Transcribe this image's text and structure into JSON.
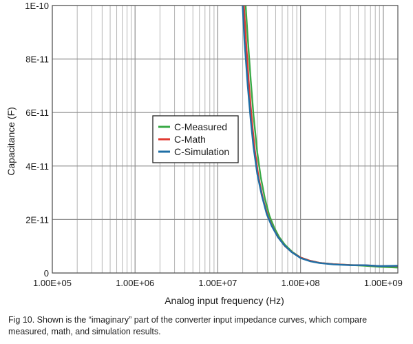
{
  "chart_data": {
    "type": "line",
    "title": "",
    "xlabel": "Analog input frequency (Hz)",
    "ylabel": "Capacitance (F)",
    "xscale": "log",
    "xlim": [
      100000,
      1500000000
    ],
    "ylim": [
      0,
      1e-10
    ],
    "grid": true,
    "legend_position": "center",
    "x_ticks": [
      {
        "value": 100000,
        "label": "1.00E+05"
      },
      {
        "value": 1000000,
        "label": "1.00E+06"
      },
      {
        "value": 10000000,
        "label": "1.00E+07"
      },
      {
        "value": 100000000,
        "label": "1.00E+08"
      },
      {
        "value": 1000000000,
        "label": "1.00E+09"
      }
    ],
    "y_ticks": [
      {
        "value": 0,
        "label": "0"
      },
      {
        "value": 2e-11,
        "label": "2E-11"
      },
      {
        "value": 4e-11,
        "label": "4E-11"
      },
      {
        "value": 6e-11,
        "label": "6E-11"
      },
      {
        "value": 8e-11,
        "label": "8E-11"
      },
      {
        "value": 1e-10,
        "label": "1E-10"
      }
    ],
    "series": [
      {
        "name": "C-Measured",
        "color": "#3aaa47",
        "points": [
          [
            21500000,
            1.02e-10
          ],
          [
            23000000,
            8.8e-11
          ],
          [
            25000000,
            7.2e-11
          ],
          [
            27000000,
            5.9e-11
          ],
          [
            30000000,
            4.5e-11
          ],
          [
            33000000,
            3.6e-11
          ],
          [
            37000000,
            2.8e-11
          ],
          [
            42000000,
            2.15e-11
          ],
          [
            48000000,
            1.7e-11
          ],
          [
            55000000,
            1.35e-11
          ],
          [
            65000000,
            1.05e-11
          ],
          [
            80000000,
            7.8e-12
          ],
          [
            100000000,
            5.8e-12
          ],
          [
            130000000,
            4.6e-12
          ],
          [
            170000000,
            3.8e-12
          ],
          [
            250000000,
            3.3e-12
          ],
          [
            400000000,
            3e-12
          ],
          [
            600000000,
            2.7e-12
          ],
          [
            900000000,
            2.3e-12
          ],
          [
            1500000000,
            2e-12
          ]
        ]
      },
      {
        "name": "C-Math",
        "color": "#e03a31",
        "points": [
          [
            20500000,
            1.02e-10
          ],
          [
            22000000,
            8.6e-11
          ],
          [
            24000000,
            6.9e-11
          ],
          [
            26000000,
            5.6e-11
          ],
          [
            28000000,
            4.6e-11
          ],
          [
            31000000,
            3.6e-11
          ],
          [
            35000000,
            2.8e-11
          ],
          [
            40000000,
            2.15e-11
          ],
          [
            46000000,
            1.7e-11
          ],
          [
            54000000,
            1.32e-11
          ],
          [
            65000000,
            1e-11
          ],
          [
            80000000,
            7.6e-12
          ],
          [
            100000000,
            5.8e-12
          ],
          [
            130000000,
            4.6e-12
          ],
          [
            170000000,
            3.8e-12
          ],
          [
            250000000,
            3.3e-12
          ],
          [
            400000000,
            3e-12
          ],
          [
            600000000,
            2.9e-12
          ],
          [
            900000000,
            2.6e-12
          ],
          [
            1500000000,
            2.6e-12
          ]
        ]
      },
      {
        "name": "C-Simulation",
        "color": "#1f6fa6",
        "points": [
          [
            19800000,
            1.02e-10
          ],
          [
            21000000,
            8.7e-11
          ],
          [
            23000000,
            7e-11
          ],
          [
            25000000,
            5.7e-11
          ],
          [
            27000000,
            4.7e-11
          ],
          [
            30000000,
            3.7e-11
          ],
          [
            34000000,
            2.9e-11
          ],
          [
            39000000,
            2.2e-11
          ],
          [
            45000000,
            1.75e-11
          ],
          [
            53000000,
            1.35e-11
          ],
          [
            63000000,
            1.05e-11
          ],
          [
            78000000,
            7.8e-12
          ],
          [
            100000000,
            5.6e-12
          ],
          [
            130000000,
            4.4e-12
          ],
          [
            170000000,
            3.7e-12
          ],
          [
            250000000,
            3.2e-12
          ],
          [
            400000000,
            2.9e-12
          ],
          [
            600000000,
            2.9e-12
          ],
          [
            900000000,
            2.6e-12
          ],
          [
            1500000000,
            2.7e-12
          ]
        ]
      }
    ]
  },
  "caption": {
    "text": "Fig 10. Shown is the “imaginary” part of the converter input impedance curves, which compare measured, math, and simulation results."
  }
}
